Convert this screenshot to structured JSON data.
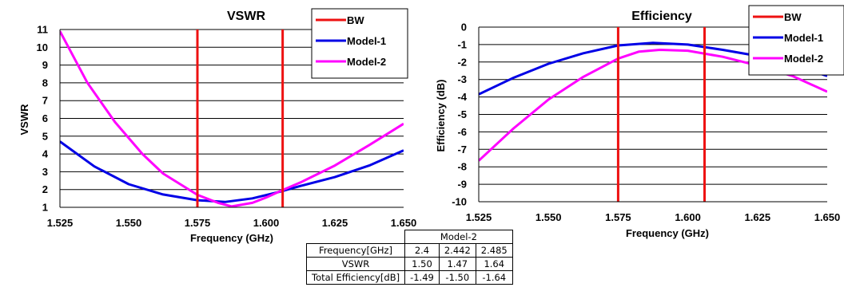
{
  "chart_data": [
    {
      "type": "line",
      "title": "VSWR",
      "xlabel": "Frequency (GHz)",
      "ylabel": "VSWR",
      "xlim": [
        1.525,
        1.65
      ],
      "ylim": [
        1,
        11
      ],
      "x_ticks": [
        "1.525",
        "1.550",
        "1.575",
        "1.600",
        "1.625",
        "1.650"
      ],
      "y_ticks": [
        "1",
        "2",
        "3",
        "4",
        "5",
        "6",
        "7",
        "8",
        "9",
        "10",
        "11"
      ],
      "grid": true,
      "legend_position": "top-right",
      "bw_markers": [
        1.575,
        1.606
      ],
      "legend": [
        "BW",
        "Model-1",
        "Model-2"
      ],
      "series": [
        {
          "name": "Model-1",
          "color": "#0000e6",
          "x": [
            1.525,
            1.5375,
            1.55,
            1.5625,
            1.575,
            1.585,
            1.595,
            1.605,
            1.6125,
            1.625,
            1.6375,
            1.65
          ],
          "y": [
            4.7,
            3.3,
            2.3,
            1.72,
            1.4,
            1.3,
            1.5,
            1.88,
            2.2,
            2.7,
            3.35,
            4.2
          ]
        },
        {
          "name": "Model-2",
          "color": "#ff00ff",
          "x": [
            1.525,
            1.535,
            1.545,
            1.555,
            1.5625,
            1.575,
            1.5825,
            1.5875,
            1.595,
            1.6,
            1.605,
            1.6125,
            1.625,
            1.6375,
            1.65
          ],
          "y": [
            10.9,
            8.0,
            5.8,
            4.0,
            2.9,
            1.7,
            1.25,
            1.05,
            1.25,
            1.55,
            1.9,
            2.4,
            3.35,
            4.5,
            5.7
          ]
        }
      ]
    },
    {
      "type": "line",
      "title": "Efficiency",
      "xlabel": "Frequency (GHz)",
      "ylabel": "Efficiency (dB)",
      "xlim": [
        1.525,
        1.65
      ],
      "ylim": [
        -10,
        0
      ],
      "x_ticks": [
        "1.525",
        "1.550",
        "1.575",
        "1.600",
        "1.625",
        "1.650"
      ],
      "y_ticks": [
        "0",
        "-1",
        "-2",
        "-3",
        "-4",
        "-5",
        "-6",
        "-7",
        "-8",
        "-9",
        "-10"
      ],
      "grid": true,
      "legend_position": "top-right",
      "bw_markers": [
        1.575,
        1.606
      ],
      "legend": [
        "BW",
        "Model-1",
        "Model-2"
      ],
      "series": [
        {
          "name": "Model-1",
          "color": "#0000e6",
          "x": [
            1.525,
            1.5375,
            1.55,
            1.5625,
            1.575,
            1.5875,
            1.6,
            1.6125,
            1.625,
            1.6375,
            1.65
          ],
          "y": [
            -3.85,
            -2.9,
            -2.1,
            -1.5,
            -1.05,
            -0.9,
            -1.0,
            -1.3,
            -1.65,
            -2.15,
            -2.8
          ]
        },
        {
          "name": "Model-2",
          "color": "#ff00ff",
          "x": [
            1.525,
            1.5375,
            1.55,
            1.5625,
            1.575,
            1.5825,
            1.59,
            1.6,
            1.6125,
            1.625,
            1.6375,
            1.65
          ],
          "y": [
            -7.65,
            -5.8,
            -4.15,
            -2.85,
            -1.8,
            -1.4,
            -1.3,
            -1.35,
            -1.7,
            -2.2,
            -2.8,
            -3.7
          ]
        }
      ]
    }
  ],
  "table": {
    "group_header": "Model-2",
    "columns": [
      "2.4",
      "2.442",
      "2.485"
    ],
    "rows": [
      {
        "label": "Frequency[GHz]",
        "values": [
          "2.4",
          "2.442",
          "2.485"
        ]
      },
      {
        "label": "VSWR",
        "values": [
          "1.50",
          "1.47",
          "1.64"
        ]
      },
      {
        "label": "Total Efficiency[dB]",
        "values": [
          "-1.49",
          "-1.50",
          "-1.64"
        ]
      }
    ]
  },
  "colors": {
    "bw": "#ee1111",
    "model1": "#0000e6",
    "model2": "#ff00ff",
    "grid": "#000000"
  }
}
